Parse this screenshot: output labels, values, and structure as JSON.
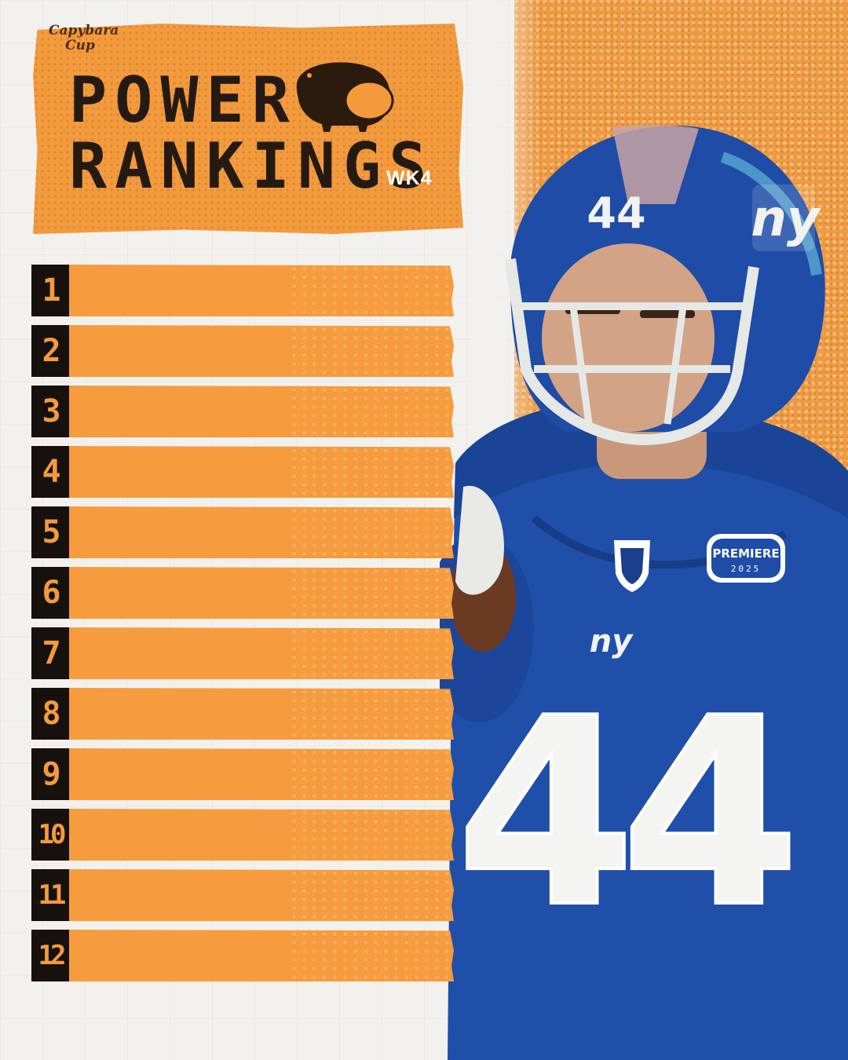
{
  "header": {
    "title_line1": "POWER",
    "title_line2": "RANKINGS",
    "week": "WK4",
    "logo_text_line1": "Capybara",
    "logo_text_line2": "Cup"
  },
  "rankings": [
    {
      "rank": "1"
    },
    {
      "rank": "2"
    },
    {
      "rank": "3"
    },
    {
      "rank": "4"
    },
    {
      "rank": "5"
    },
    {
      "rank": "6"
    },
    {
      "rank": "7"
    },
    {
      "rank": "8"
    },
    {
      "rank": "9"
    },
    {
      "rank": "10"
    },
    {
      "rank": "11"
    },
    {
      "rank": "12"
    }
  ],
  "player": {
    "helmet_number": "44",
    "jersey_number": "44",
    "helmet_logo": "ny",
    "chest_logo": "ny",
    "patch_text_line1": "PREMIERE",
    "patch_text_line2": "2025"
  },
  "colors": {
    "accent_orange": "#f39a3d",
    "dark": "#16110d",
    "jersey_blue": "#1f4fa8",
    "background": "#f3f1ee"
  },
  "icons": [
    "capybara-icon",
    "nfl-shield-icon"
  ]
}
